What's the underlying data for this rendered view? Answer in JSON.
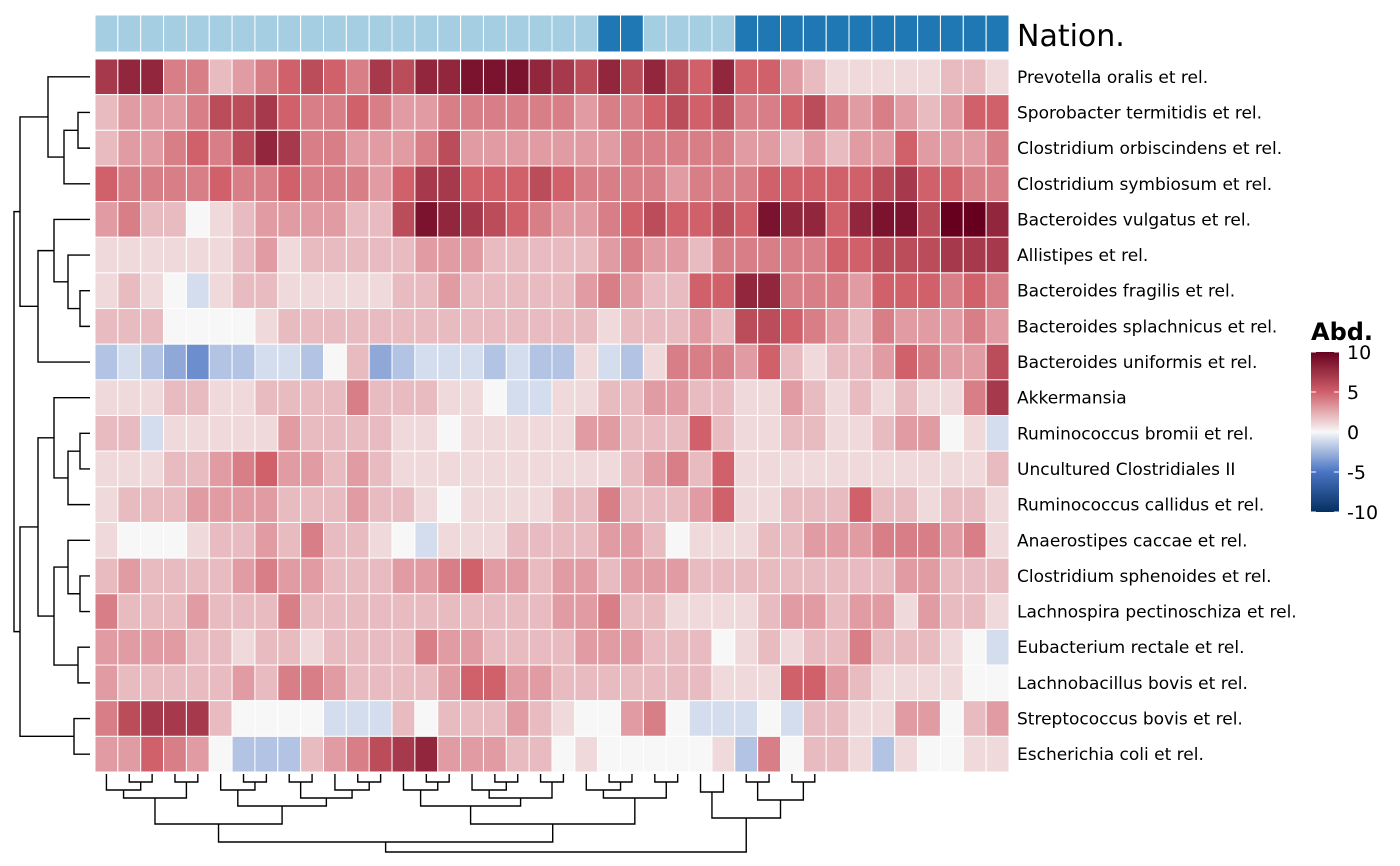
{
  "chart_data": {
    "type": "heatmap",
    "annotation": {
      "name": "Nation.",
      "light_color": "#A6CEE3",
      "dark_color": "#1F78B4",
      "values": [
        0,
        0,
        0,
        0,
        0,
        0,
        0,
        0,
        0,
        0,
        0,
        0,
        0,
        0,
        0,
        0,
        0,
        0,
        0,
        0,
        0,
        0,
        1,
        1,
        0,
        0,
        0,
        0,
        1,
        1,
        1,
        1,
        1,
        1,
        1,
        1,
        1,
        1,
        1,
        1
      ]
    },
    "rows": [
      "Prevotella oralis et rel.",
      "Sporobacter termitidis et rel.",
      "Clostridium orbiscindens et rel.",
      "Clostridium symbiosum et rel.",
      "Bacteroides vulgatus et rel.",
      "Allistipes et rel.",
      "Bacteroides fragilis et rel.",
      "Bacteroides splachnicus et rel.",
      "Bacteroides uniformis et rel.",
      "Akkermansia",
      "Ruminococcus bromii et rel.",
      "Uncultured Clostridiales II",
      "Ruminococcus callidus et rel.",
      "Anaerostipes caccae et rel.",
      "Clostridium sphenoides et rel.",
      "Lachnospira pectinoschiza et rel.",
      "Eubacterium rectale et rel.",
      "Lachnobacillus bovis et rel.",
      "Streptococcus bovis et rel.",
      "Escherichia coli et rel."
    ],
    "n_columns": 40,
    "values": [
      [
        7,
        8,
        8,
        4,
        4,
        2,
        3,
        4,
        5,
        6,
        5,
        4,
        7,
        6,
        8,
        8,
        9,
        9,
        9,
        8,
        7,
        6,
        8,
        6,
        8,
        6,
        5,
        8,
        5,
        5,
        3,
        2,
        1,
        1,
        1,
        1,
        1,
        2,
        2,
        1
      ],
      [
        2,
        3,
        3,
        3,
        4,
        6,
        6,
        7,
        5,
        4,
        4,
        5,
        4,
        3,
        3,
        4,
        4,
        4,
        4,
        4,
        4,
        3,
        4,
        4,
        5,
        6,
        5,
        6,
        4,
        4,
        5,
        6,
        4,
        3,
        4,
        3,
        2,
        3,
        5,
        5
      ],
      [
        2,
        3,
        3,
        4,
        5,
        4,
        6,
        8,
        7,
        4,
        4,
        3,
        3,
        3,
        4,
        6,
        3,
        3,
        3,
        3,
        3,
        3,
        3,
        4,
        4,
        4,
        4,
        4,
        3,
        3,
        2,
        3,
        2,
        3,
        3,
        5,
        3,
        3,
        3,
        4
      ],
      [
        5,
        4,
        4,
        4,
        4,
        5,
        4,
        4,
        5,
        4,
        4,
        4,
        3,
        5,
        7,
        7,
        5,
        5,
        5,
        6,
        5,
        4,
        4,
        4,
        4,
        3,
        4,
        4,
        4,
        5,
        5,
        5,
        5,
        5,
        6,
        7,
        5,
        5,
        4,
        4
      ],
      [
        3,
        4,
        2,
        2,
        0,
        1,
        2,
        3,
        3,
        3,
        3,
        2,
        2,
        6,
        9,
        8,
        7,
        6,
        5,
        4,
        3,
        3,
        4,
        5,
        6,
        5,
        5,
        6,
        5,
        9,
        8,
        8,
        5,
        8,
        9,
        9,
        6,
        10,
        10,
        8
      ],
      [
        1,
        1,
        1,
        1,
        1,
        1,
        2,
        3,
        1,
        2,
        2,
        2,
        2,
        2,
        3,
        3,
        3,
        2,
        2,
        2,
        2,
        2,
        3,
        4,
        3,
        3,
        2,
        4,
        4,
        4,
        4,
        4,
        5,
        5,
        6,
        6,
        6,
        7,
        7,
        7
      ],
      [
        1,
        2,
        1,
        0,
        -1,
        1,
        2,
        2,
        1,
        1,
        1,
        1,
        1,
        2,
        2,
        3,
        2,
        2,
        2,
        2,
        2,
        3,
        4,
        3,
        2,
        2,
        5,
        5,
        8,
        8,
        4,
        4,
        4,
        3,
        5,
        5,
        5,
        4,
        5,
        4
      ],
      [
        2,
        2,
        2,
        0,
        0,
        0,
        0,
        1,
        2,
        2,
        2,
        2,
        2,
        2,
        2,
        2,
        2,
        2,
        2,
        2,
        2,
        2,
        1,
        2,
        2,
        2,
        3,
        2,
        6,
        6,
        5,
        4,
        3,
        2,
        4,
        3,
        3,
        3,
        4,
        3
      ],
      [
        -2,
        -1,
        -2,
        -3,
        -4,
        -2,
        -2,
        -1,
        -1,
        -2,
        0,
        2,
        -3,
        -2,
        -1,
        -1,
        -1,
        -2,
        -1,
        -2,
        -2,
        1,
        -1,
        -2,
        1,
        4,
        4,
        4,
        3,
        5,
        2,
        1,
        2,
        2,
        3,
        5,
        4,
        3,
        3,
        6
      ],
      [
        1,
        1,
        1,
        2,
        2,
        1,
        1,
        2,
        2,
        2,
        2,
        4,
        2,
        2,
        2,
        1,
        1,
        0,
        -1,
        -1,
        1,
        1,
        2,
        2,
        3,
        3,
        2,
        2,
        1,
        1,
        3,
        2,
        1,
        2,
        1,
        2,
        1,
        1,
        4,
        7
      ],
      [
        2,
        2,
        -1,
        1,
        1,
        1,
        1,
        1,
        3,
        2,
        2,
        2,
        2,
        1,
        1,
        0,
        1,
        1,
        1,
        1,
        1,
        3,
        3,
        2,
        2,
        2,
        5,
        2,
        1,
        1,
        2,
        2,
        1,
        1,
        2,
        3,
        3,
        0,
        1,
        -1
      ],
      [
        1,
        1,
        1,
        2,
        2,
        3,
        4,
        5,
        3,
        3,
        2,
        3,
        2,
        1,
        1,
        1,
        1,
        1,
        1,
        1,
        1,
        1,
        1,
        2,
        3,
        4,
        2,
        5,
        1,
        1,
        1,
        1,
        1,
        1,
        1,
        1,
        1,
        1,
        1,
        2
      ],
      [
        1,
        2,
        2,
        2,
        3,
        3,
        3,
        3,
        2,
        2,
        2,
        3,
        2,
        2,
        1,
        0,
        1,
        1,
        1,
        1,
        2,
        2,
        4,
        2,
        2,
        2,
        3,
        5,
        1,
        1,
        2,
        2,
        2,
        5,
        2,
        2,
        1,
        2,
        2,
        1
      ],
      [
        1,
        0,
        0,
        0,
        1,
        2,
        2,
        3,
        2,
        4,
        2,
        2,
        1,
        0,
        -1,
        1,
        1,
        1,
        2,
        2,
        2,
        2,
        3,
        3,
        2,
        0,
        1,
        1,
        1,
        2,
        2,
        3,
        3,
        3,
        4,
        4,
        4,
        3,
        4,
        1
      ],
      [
        2,
        3,
        2,
        2,
        2,
        2,
        3,
        4,
        3,
        3,
        2,
        2,
        2,
        3,
        3,
        4,
        5,
        3,
        3,
        2,
        3,
        3,
        2,
        3,
        3,
        3,
        2,
        2,
        2,
        2,
        2,
        2,
        2,
        2,
        2,
        3,
        3,
        2,
        2,
        2
      ],
      [
        4,
        2,
        2,
        2,
        3,
        2,
        2,
        2,
        4,
        2,
        2,
        2,
        2,
        2,
        2,
        2,
        2,
        2,
        2,
        2,
        3,
        3,
        4,
        2,
        2,
        1,
        1,
        1,
        1,
        2,
        3,
        3,
        2,
        3,
        3,
        1,
        3,
        2,
        2,
        1
      ],
      [
        3,
        3,
        3,
        3,
        2,
        2,
        1,
        2,
        2,
        1,
        2,
        2,
        2,
        2,
        4,
        3,
        3,
        2,
        2,
        2,
        2,
        3,
        3,
        3,
        2,
        2,
        2,
        0,
        1,
        2,
        1,
        2,
        2,
        4,
        2,
        2,
        2,
        1,
        0,
        -1
      ],
      [
        3,
        2,
        2,
        2,
        2,
        2,
        3,
        2,
        4,
        4,
        3,
        2,
        2,
        2,
        2,
        3,
        5,
        5,
        3,
        3,
        2,
        2,
        2,
        2,
        2,
        2,
        2,
        1,
        1,
        1,
        5,
        5,
        3,
        2,
        1,
        1,
        1,
        1,
        0,
        0
      ],
      [
        4,
        6,
        7,
        7,
        7,
        2,
        0,
        0,
        0,
        0,
        -1,
        -1,
        -1,
        2,
        0,
        2,
        2,
        2,
        3,
        2,
        1,
        0,
        0,
        3,
        4,
        0,
        -1,
        -1,
        -1,
        0,
        -1,
        2,
        2,
        1,
        1,
        3,
        3,
        0,
        2,
        3
      ],
      [
        3,
        3,
        5,
        4,
        3,
        0,
        -2,
        -2,
        -2,
        2,
        3,
        4,
        6,
        7,
        8,
        3,
        3,
        3,
        2,
        2,
        0,
        1,
        0,
        0,
        0,
        0,
        0,
        1,
        -2,
        4,
        0,
        2,
        2,
        1,
        -2,
        1,
        0,
        0,
        1,
        1
      ]
    ],
    "row_dendrogram": [
      [
        0,
        19,
        5.0
      ],
      [
        1,
        2,
        2.0
      ],
      [
        3,
        4,
        2.5
      ],
      [
        5,
        6,
        2.0
      ],
      [
        7,
        8,
        3.0
      ],
      [
        9,
        10,
        1.0
      ],
      [
        11,
        12,
        2.0
      ],
      [
        13,
        14,
        1.0
      ],
      [
        15,
        16,
        1.2
      ],
      [
        17,
        18,
        1.5
      ],
      [
        19,
        20,
        2.0
      ],
      [
        21,
        22,
        2.5
      ],
      [
        23,
        24,
        3.0
      ],
      [
        25,
        26,
        3.2
      ],
      [
        27,
        28,
        4.0
      ],
      [
        29,
        30,
        4.5
      ],
      [
        31,
        32,
        5.5
      ],
      [
        33,
        34,
        6.0
      ],
      [
        35,
        36,
        7.0
      ],
      [
        37,
        38,
        10.0
      ]
    ],
    "legend": {
      "title": "Abd.",
      "ticks": [
        10,
        5,
        0,
        -5,
        -10
      ],
      "range": [
        -10,
        10
      ],
      "colors": {
        "low": "#053061",
        "mid_low": "#4A74C4",
        "mid": "#F7F7F7",
        "mid_high": "#D0606A",
        "high": "#67001F"
      }
    }
  }
}
